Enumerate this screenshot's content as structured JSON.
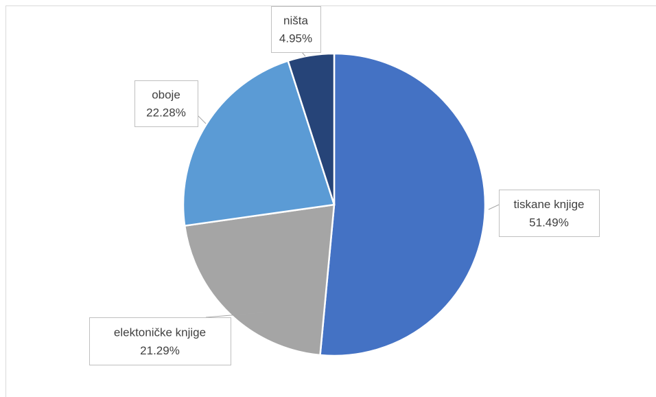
{
  "chart_data": {
    "type": "pie",
    "categories": [
      "tiskane knjige",
      "elektoničke knjige",
      "oboje",
      "ništa"
    ],
    "values": [
      51.49,
      21.29,
      22.28,
      4.95
    ],
    "value_labels": [
      "51.49%",
      "21.29%",
      "22.28%",
      "4.95%"
    ],
    "colors": [
      "#4472c4",
      "#a5a5a5",
      "#5b9bd5",
      "#264478"
    ]
  }
}
